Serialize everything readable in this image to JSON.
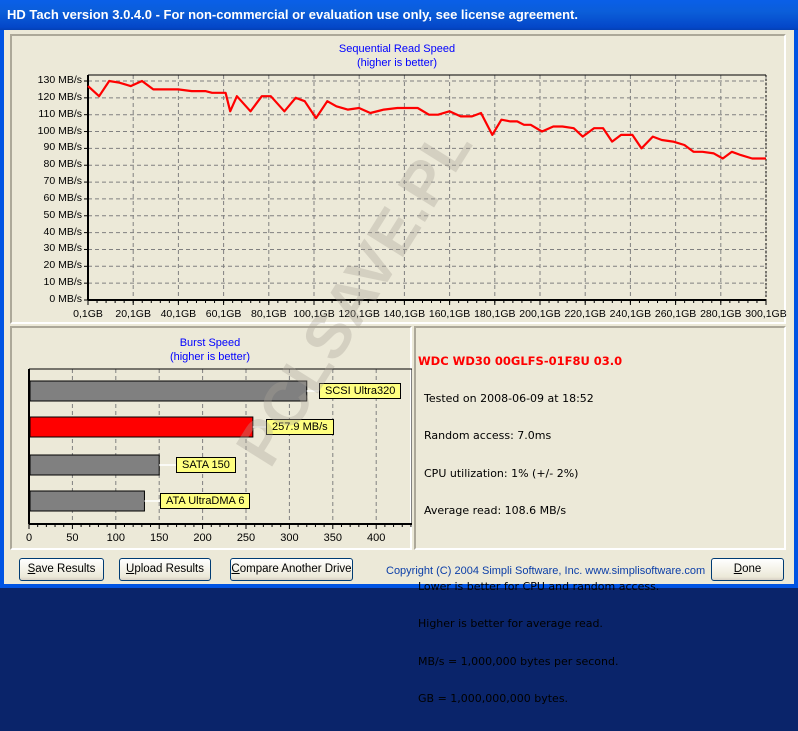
{
  "window": {
    "title": "HD Tach version 3.0.4.0  - For non-commercial or evaluation use only, see license agreement."
  },
  "colors": {
    "line": "#ff0000",
    "drive_bar": "#ff0000",
    "reference_bar": "#808080",
    "tag_bg": "#ffff80",
    "title_blue": "#0000ff",
    "drive_name": "#ff0000"
  },
  "chart_data": [
    {
      "type": "line",
      "title": "Sequential Read Speed",
      "subtitle": "(higher is better)",
      "xlabel": "",
      "ylabel": "",
      "yticks": [
        "0 MB/s",
        "10 MB/s",
        "20 MB/s",
        "30 MB/s",
        "40 MB/s",
        "50 MB/s",
        "60 MB/s",
        "70 MB/s",
        "80 MB/s",
        "90 MB/s",
        "100 MB/s",
        "110 MB/s",
        "120 MB/s",
        "130 MB/s"
      ],
      "xticks": [
        "0,1GB",
        "20,1GB",
        "40,1GB",
        "60,1GB",
        "80,1GB",
        "100,1GB",
        "120,1GB",
        "140,1GB",
        "160,1GB",
        "180,1GB",
        "200,1GB",
        "220,1GB",
        "240,1GB",
        "260,1GB",
        "280,1GB",
        "300,1GB"
      ],
      "ylim": [
        0,
        135
      ],
      "xlim": [
        0.1,
        300.1
      ],
      "grid": true,
      "series": [
        {
          "name": "Read speed (MB/s)",
          "x": [
            0.1,
            5,
            9.5,
            14,
            19,
            24,
            29,
            32,
            40,
            46,
            52,
            55,
            61,
            63,
            66,
            72,
            77,
            81,
            87,
            92,
            96,
            101,
            106,
            110,
            115,
            120,
            125,
            131,
            137,
            141,
            146,
            151,
            155,
            160,
            165,
            170,
            174,
            179,
            183,
            187,
            190,
            193,
            196,
            201,
            206,
            210,
            215,
            219,
            224,
            228,
            232,
            236,
            241,
            245,
            250,
            254,
            259,
            264,
            268,
            272,
            277,
            281,
            285,
            289,
            294,
            300.1
          ],
          "y": [
            127,
            121,
            130,
            129,
            127,
            130,
            125,
            125,
            125,
            124,
            124,
            123,
            123,
            112,
            121,
            112,
            121,
            121,
            112,
            120,
            118,
            108,
            118,
            115,
            113,
            114,
            111,
            113,
            114,
            114,
            114,
            110,
            110,
            112,
            109,
            109,
            111,
            98,
            107,
            106,
            106,
            104,
            104,
            100,
            103,
            103,
            102,
            97,
            102,
            102,
            94,
            98,
            98,
            90,
            97,
            95,
            94,
            92,
            88,
            88,
            87,
            84,
            88,
            86,
            84,
            84
          ]
        }
      ]
    },
    {
      "type": "bar",
      "orientation": "horizontal",
      "title": "Burst Speed",
      "subtitle": "(higher is better)",
      "categories": [
        "SCSI Ultra320",
        "257.9 MB/s",
        "SATA 150",
        "ATA UltraDMA 6"
      ],
      "values": [
        320,
        257.9,
        150,
        133
      ],
      "bar_colors": [
        "#808080",
        "#ff0000",
        "#808080",
        "#808080"
      ],
      "xticks": [
        "0",
        "50",
        "100",
        "150",
        "200",
        "250",
        "300",
        "350",
        "400"
      ],
      "xlim": [
        0,
        440
      ],
      "grid": true
    }
  ],
  "line_chart": {
    "title": "Sequential Read Speed",
    "subtitle": "(higher is better)"
  },
  "burst_chart": {
    "title": "Burst Speed",
    "subtitle": "(higher is better)",
    "labels": [
      "SCSI Ultra320",
      "257.9 MB/s",
      "SATA 150",
      "ATA UltraDMA 6"
    ],
    "xticks": [
      "0",
      "50",
      "100",
      "150",
      "200",
      "250",
      "300",
      "350",
      "400"
    ]
  },
  "info": {
    "drive": "WDC WD30 00GLFS-01F8U 03.0",
    "tested": "Tested on 2008-06-09 at 18:52",
    "random_access": "Random access: 7.0ms",
    "cpu": "CPU utilization: 1% (+/- 2%)",
    "average_read": "Average read: 108.6 MB/s",
    "notes": [
      "Lower is better for CPU and random access.",
      "Higher is better for average read.",
      "MB/s = 1,000,000 bytes per second.",
      "GB = 1,000,000,000 bytes."
    ]
  },
  "footer": {
    "save": {
      "ul": "S",
      "rest": "ave Results"
    },
    "upload": {
      "ul": "U",
      "rest": "pload Results"
    },
    "compare": {
      "ul": "C",
      "rest": "ompare Another Drive"
    },
    "done": {
      "ul": "D",
      "rest": "one"
    },
    "copyright": "Copyright (C) 2004 Simpli Software, Inc. www.simplisoftware.com"
  },
  "watermark": "PCLSAVE.PL"
}
